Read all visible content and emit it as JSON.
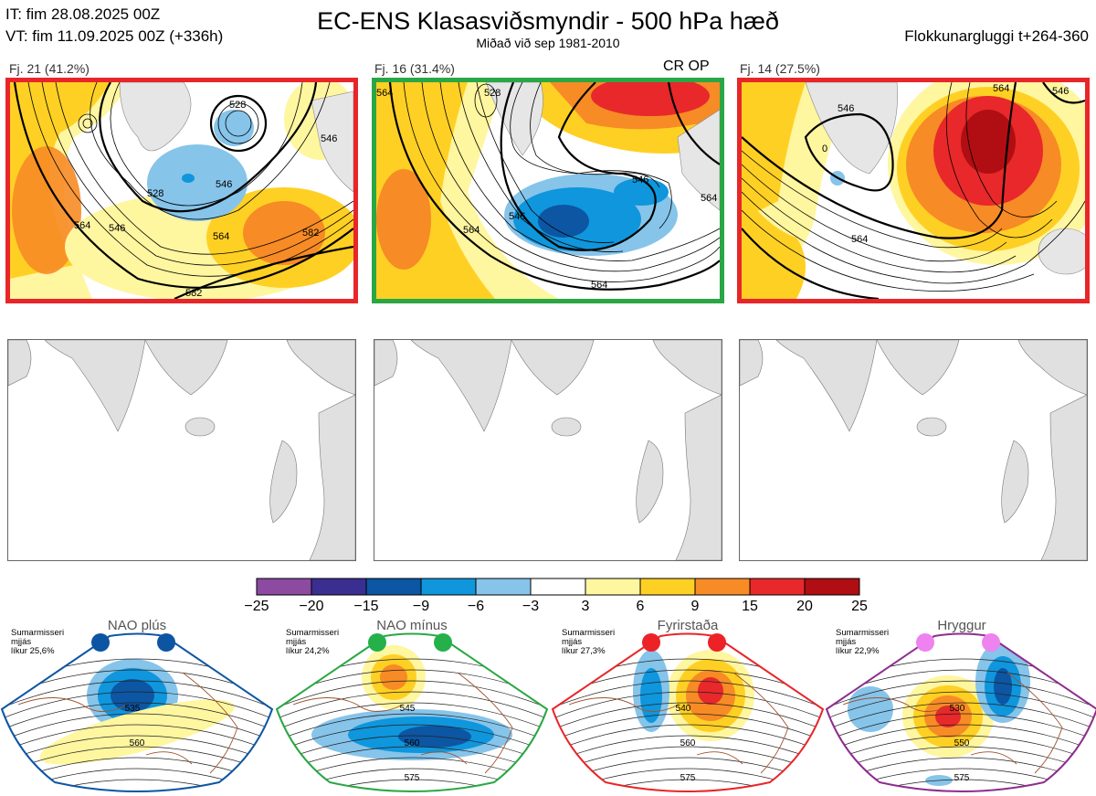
{
  "header": {
    "it_line": "IT: fim 28.08.2025 00Z",
    "vt_line": "VT: fim 11.09.2025 00Z  (+336h)",
    "title": "EC-ENS Klasasviðsmyndir - 500 hPa hæð",
    "subtitle": "Miðað við sep 1981-2010",
    "window": "Flokkunargluggi t+264-360"
  },
  "clusters": [
    {
      "label": "Fj. 21 (41.2%)",
      "frame_color": "#e8262a",
      "contours": [
        "528",
        "546",
        "564",
        "546",
        "528",
        "564",
        "582",
        "546",
        "582"
      ]
    },
    {
      "label": "Fj. 16 (31.4%)",
      "frame_color": "#2aa744",
      "marker": "CR OP",
      "contours": [
        "564",
        "564",
        "528",
        "546",
        "564",
        "546",
        "564"
      ]
    },
    {
      "label": "Fj. 14 (27.5%)",
      "frame_color": "#e8262a",
      "contours": [
        "546",
        "564",
        "546",
        "0",
        "564"
      ]
    }
  ],
  "colorbar": {
    "colors": [
      "#8c4aa0",
      "#3b2e91",
      "#0c56a3",
      "#0f96dc",
      "#86c4ea",
      "#ffffff",
      "#fff6a0",
      "#ffd024",
      "#f78b25",
      "#e8282a",
      "#b00e12"
    ],
    "ticks": [
      "−25",
      "−20",
      "−15",
      "−9",
      "−6",
      "−3",
      "3",
      "6",
      "9",
      "15",
      "20",
      "25"
    ]
  },
  "regimes": [
    {
      "name": "NAO plús",
      "color": "#0d56a3",
      "dot_color": "#0c55a3",
      "note": [
        "Sumarmisseri",
        "mjjás",
        "líkur 25,6%"
      ],
      "labels": [
        "535",
        "560"
      ]
    },
    {
      "name": "NAO mínus",
      "color": "#2aa744",
      "dot_color": "#25b04a",
      "note": [
        "Sumarmisseri",
        "mjjás",
        "líkur 24,2%"
      ],
      "labels": [
        "545",
        "560",
        "575"
      ]
    },
    {
      "name": "Fyrirstaða",
      "color": "#e8262a",
      "dot_color": "#ec2227",
      "note": [
        "Sumarmisseri",
        "mjjás",
        "líkur 27,3%"
      ],
      "labels": [
        "540",
        "560",
        "575"
      ]
    },
    {
      "name": "Hryggur",
      "color": "#8e2e8e",
      "dot_color": "#ee82ee",
      "note": [
        "Sumarmisseri",
        "mjjás",
        "líkur 22,9%"
      ],
      "labels": [
        "530",
        "550",
        "575"
      ]
    }
  ]
}
